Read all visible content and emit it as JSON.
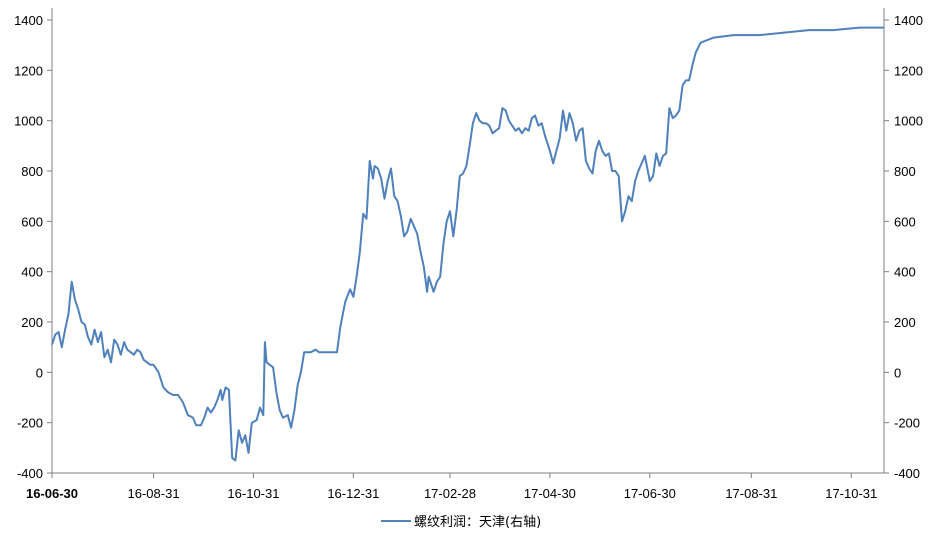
{
  "chart_data": {
    "type": "line",
    "title": "",
    "xlabel": "",
    "ylabel": "",
    "ylim": [
      -400,
      1400
    ],
    "y_ticks": [
      -400,
      -200,
      0,
      200,
      400,
      600,
      800,
      1000,
      1200,
      1400
    ],
    "x_tick_labels": [
      "16-06-30",
      "16-08-31",
      "16-10-31",
      "16-12-31",
      "17-02-28",
      "17-04-30",
      "17-06-30",
      "17-08-31",
      "17-10-31"
    ],
    "x_tick_dates": [
      "2016-06-30",
      "2016-08-31",
      "2016-10-31",
      "2016-12-31",
      "2017-02-28",
      "2017-04-30",
      "2017-06-30",
      "2017-08-31",
      "2017-10-31"
    ],
    "x_range": [
      "2016-06-30",
      "2017-11-20"
    ],
    "legend_position": "bottom",
    "grid": false,
    "series": [
      {
        "name": "螺纹利润：天津(右轴)",
        "color": "#4f81bd",
        "points": [
          [
            "2016-06-30",
            110
          ],
          [
            "2016-07-02",
            150
          ],
          [
            "2016-07-04",
            160
          ],
          [
            "2016-07-06",
            100
          ],
          [
            "2016-07-08",
            170
          ],
          [
            "2016-07-10",
            230
          ],
          [
            "2016-07-12",
            360
          ],
          [
            "2016-07-14",
            290
          ],
          [
            "2016-07-16",
            250
          ],
          [
            "2016-07-18",
            200
          ],
          [
            "2016-07-20",
            190
          ],
          [
            "2016-07-22",
            140
          ],
          [
            "2016-07-24",
            110
          ],
          [
            "2016-07-26",
            170
          ],
          [
            "2016-07-28",
            120
          ],
          [
            "2016-07-30",
            160
          ],
          [
            "2016-08-01",
            60
          ],
          [
            "2016-08-03",
            90
          ],
          [
            "2016-08-05",
            40
          ],
          [
            "2016-08-07",
            130
          ],
          [
            "2016-08-09",
            110
          ],
          [
            "2016-08-11",
            70
          ],
          [
            "2016-08-13",
            120
          ],
          [
            "2016-08-15",
            90
          ],
          [
            "2016-08-17",
            80
          ],
          [
            "2016-08-19",
            70
          ],
          [
            "2016-08-21",
            90
          ],
          [
            "2016-08-23",
            80
          ],
          [
            "2016-08-25",
            50
          ],
          [
            "2016-08-27",
            40
          ],
          [
            "2016-08-29",
            30
          ],
          [
            "2016-08-31",
            30
          ],
          [
            "2016-09-03",
            0
          ],
          [
            "2016-09-06",
            -60
          ],
          [
            "2016-09-09",
            -80
          ],
          [
            "2016-09-12",
            -90
          ],
          [
            "2016-09-15",
            -90
          ],
          [
            "2016-09-18",
            -120
          ],
          [
            "2016-09-21",
            -170
          ],
          [
            "2016-09-24",
            -180
          ],
          [
            "2016-09-26",
            -210
          ],
          [
            "2016-09-29",
            -210
          ],
          [
            "2016-10-01",
            -180
          ],
          [
            "2016-10-03",
            -140
          ],
          [
            "2016-10-05",
            -160
          ],
          [
            "2016-10-07",
            -140
          ],
          [
            "2016-10-09",
            -110
          ],
          [
            "2016-10-11",
            -70
          ],
          [
            "2016-10-12",
            -110
          ],
          [
            "2016-10-14",
            -60
          ],
          [
            "2016-10-16",
            -70
          ],
          [
            "2016-10-18",
            -340
          ],
          [
            "2016-10-20",
            -350
          ],
          [
            "2016-10-22",
            -230
          ],
          [
            "2016-10-24",
            -280
          ],
          [
            "2016-10-26",
            -250
          ],
          [
            "2016-10-28",
            -320
          ],
          [
            "2016-10-30",
            -200
          ],
          [
            "2016-11-02",
            -190
          ],
          [
            "2016-11-04",
            -140
          ],
          [
            "2016-11-06",
            -170
          ],
          [
            "2016-11-07",
            120
          ],
          [
            "2016-11-08",
            40
          ],
          [
            "2016-11-10",
            30
          ],
          [
            "2016-11-12",
            20
          ],
          [
            "2016-11-14",
            -80
          ],
          [
            "2016-11-16",
            -150
          ],
          [
            "2016-11-18",
            -180
          ],
          [
            "2016-11-21",
            -170
          ],
          [
            "2016-11-23",
            -220
          ],
          [
            "2016-11-25",
            -150
          ],
          [
            "2016-11-27",
            -50
          ],
          [
            "2016-11-29",
            0
          ],
          [
            "2016-12-01",
            80
          ],
          [
            "2016-12-05",
            80
          ],
          [
            "2016-12-08",
            90
          ],
          [
            "2016-12-10",
            80
          ],
          [
            "2016-12-15",
            80
          ],
          [
            "2016-12-21",
            80
          ],
          [
            "2016-12-23",
            180
          ],
          [
            "2016-12-26",
            280
          ],
          [
            "2016-12-29",
            330
          ],
          [
            "2016-12-31",
            300
          ],
          [
            "2017-01-02",
            380
          ],
          [
            "2017-01-04",
            480
          ],
          [
            "2017-01-06",
            630
          ],
          [
            "2017-01-08",
            610
          ],
          [
            "2017-01-10",
            840
          ],
          [
            "2017-01-12",
            770
          ],
          [
            "2017-01-13",
            820
          ],
          [
            "2017-01-15",
            810
          ],
          [
            "2017-01-17",
            770
          ],
          [
            "2017-01-19",
            690
          ],
          [
            "2017-01-21",
            760
          ],
          [
            "2017-01-23",
            810
          ],
          [
            "2017-01-25",
            700
          ],
          [
            "2017-01-27",
            680
          ],
          [
            "2017-01-29",
            620
          ],
          [
            "2017-01-31",
            540
          ],
          [
            "2017-02-02",
            560
          ],
          [
            "2017-02-04",
            610
          ],
          [
            "2017-02-06",
            580
          ],
          [
            "2017-02-08",
            550
          ],
          [
            "2017-02-10",
            480
          ],
          [
            "2017-02-12",
            420
          ],
          [
            "2017-02-14",
            320
          ],
          [
            "2017-02-15",
            380
          ],
          [
            "2017-02-18",
            320
          ],
          [
            "2017-02-20",
            360
          ],
          [
            "2017-02-22",
            380
          ],
          [
            "2017-02-24",
            510
          ],
          [
            "2017-02-26",
            600
          ],
          [
            "2017-02-28",
            640
          ],
          [
            "2017-03-02",
            540
          ],
          [
            "2017-03-04",
            640
          ],
          [
            "2017-03-06",
            780
          ],
          [
            "2017-03-08",
            790
          ],
          [
            "2017-03-10",
            820
          ],
          [
            "2017-03-12",
            900
          ],
          [
            "2017-03-14",
            990
          ],
          [
            "2017-03-16",
            1030
          ],
          [
            "2017-03-18",
            1000
          ],
          [
            "2017-03-20",
            990
          ],
          [
            "2017-03-22",
            990
          ],
          [
            "2017-03-24",
            980
          ],
          [
            "2017-03-26",
            950
          ],
          [
            "2017-03-28",
            960
          ],
          [
            "2017-03-30",
            970
          ],
          [
            "2017-04-01",
            1050
          ],
          [
            "2017-04-03",
            1040
          ],
          [
            "2017-04-05",
            1000
          ],
          [
            "2017-04-07",
            980
          ],
          [
            "2017-04-09",
            960
          ],
          [
            "2017-04-11",
            970
          ],
          [
            "2017-04-13",
            950
          ],
          [
            "2017-04-15",
            970
          ],
          [
            "2017-04-17",
            960
          ],
          [
            "2017-04-19",
            1010
          ],
          [
            "2017-04-21",
            1020
          ],
          [
            "2017-04-23",
            980
          ],
          [
            "2017-04-25",
            990
          ],
          [
            "2017-04-27",
            940
          ],
          [
            "2017-04-30",
            880
          ],
          [
            "2017-05-02",
            830
          ],
          [
            "2017-05-04",
            880
          ],
          [
            "2017-05-06",
            930
          ],
          [
            "2017-05-08",
            1040
          ],
          [
            "2017-05-10",
            960
          ],
          [
            "2017-05-12",
            1030
          ],
          [
            "2017-05-14",
            990
          ],
          [
            "2017-05-16",
            920
          ],
          [
            "2017-05-18",
            960
          ],
          [
            "2017-05-20",
            970
          ],
          [
            "2017-05-22",
            840
          ],
          [
            "2017-05-24",
            810
          ],
          [
            "2017-05-26",
            790
          ],
          [
            "2017-05-28",
            880
          ],
          [
            "2017-05-30",
            920
          ],
          [
            "2017-06-01",
            880
          ],
          [
            "2017-06-03",
            860
          ],
          [
            "2017-06-05",
            870
          ],
          [
            "2017-06-07",
            800
          ],
          [
            "2017-06-09",
            800
          ],
          [
            "2017-06-11",
            780
          ],
          [
            "2017-06-13",
            600
          ],
          [
            "2017-06-15",
            640
          ],
          [
            "2017-06-17",
            700
          ],
          [
            "2017-06-19",
            680
          ],
          [
            "2017-06-21",
            760
          ],
          [
            "2017-06-23",
            800
          ],
          [
            "2017-06-25",
            830
          ],
          [
            "2017-06-27",
            860
          ],
          [
            "2017-06-30",
            760
          ],
          [
            "2017-07-02",
            780
          ],
          [
            "2017-07-04",
            870
          ],
          [
            "2017-07-06",
            820
          ],
          [
            "2017-07-08",
            860
          ],
          [
            "2017-07-10",
            870
          ],
          [
            "2017-07-12",
            1050
          ],
          [
            "2017-07-14",
            1010
          ],
          [
            "2017-07-16",
            1020
          ],
          [
            "2017-07-18",
            1040
          ],
          [
            "2017-07-20",
            1140
          ],
          [
            "2017-07-22",
            1160
          ],
          [
            "2017-07-24",
            1160
          ],
          [
            "2017-07-26",
            1220
          ],
          [
            "2017-07-28",
            1270
          ],
          [
            "2017-07-31",
            1310
          ],
          [
            "2017-08-08",
            1330
          ],
          [
            "2017-08-20",
            1340
          ],
          [
            "2017-09-05",
            1340
          ],
          [
            "2017-09-20",
            1350
          ],
          [
            "2017-10-05",
            1360
          ],
          [
            "2017-10-20",
            1360
          ],
          [
            "2017-11-05",
            1370
          ],
          [
            "2017-11-20",
            1370
          ]
        ]
      }
    ]
  }
}
